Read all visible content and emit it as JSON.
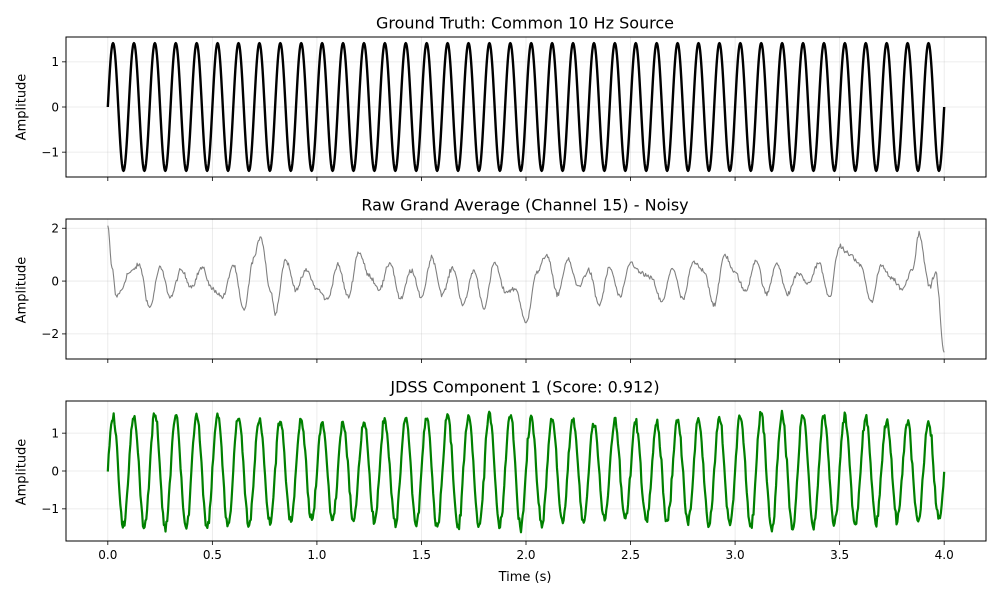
{
  "chart_data": [
    {
      "type": "line",
      "title": "Ground Truth: Common 10 Hz Source",
      "xlabel": "",
      "ylabel": "Amplitude",
      "xlim": [
        -0.2,
        4.2
      ],
      "ylim": [
        -1.55,
        1.55
      ],
      "x_ticks": [
        0.0,
        0.5,
        1.0,
        1.5,
        2.0,
        2.5,
        3.0,
        3.5,
        4.0
      ],
      "x_tick_labels": [],
      "y_ticks": [
        -1,
        0,
        1
      ],
      "y_tick_labels": [
        "−1",
        "0",
        "1"
      ],
      "grid": true,
      "color": "#000000",
      "series": [
        {
          "signal": "sine",
          "frequency_hz": 10,
          "amplitude": 1.414,
          "t_start": 0.0,
          "t_end": 4.0
        }
      ]
    },
    {
      "type": "line",
      "title": "Raw Grand Average (Channel 15) - Noisy",
      "xlabel": "",
      "ylabel": "Amplitude",
      "xlim": [
        -0.2,
        4.2
      ],
      "ylim": [
        -2.95,
        2.35
      ],
      "x_ticks": [
        0.0,
        0.5,
        1.0,
        1.5,
        2.0,
        2.5,
        3.0,
        3.5,
        4.0
      ],
      "x_tick_labels": [],
      "y_ticks": [
        -2,
        0,
        2
      ],
      "y_tick_labels": [
        "−2",
        "0",
        "2"
      ],
      "grid": true,
      "color": "#808080",
      "series": [
        {
          "signal": "noisy",
          "t_start": 0.0,
          "t_end": 4.0,
          "x": [
            0.0,
            0.02,
            0.04,
            0.06,
            0.1,
            0.15,
            0.2,
            0.25,
            0.3,
            0.35,
            0.4,
            0.45,
            0.5,
            0.55,
            0.6,
            0.65,
            0.7,
            0.73,
            0.78,
            0.8,
            0.85,
            0.9,
            0.95,
            1.0,
            1.05,
            1.1,
            1.15,
            1.2,
            1.25,
            1.3,
            1.35,
            1.4,
            1.45,
            1.5,
            1.55,
            1.6,
            1.65,
            1.7,
            1.75,
            1.8,
            1.85,
            1.9,
            1.95,
            2.0,
            2.05,
            2.1,
            2.15,
            2.2,
            2.25,
            2.3,
            2.35,
            2.4,
            2.45,
            2.5,
            2.55,
            2.6,
            2.65,
            2.7,
            2.75,
            2.8,
            2.85,
            2.9,
            2.95,
            3.0,
            3.05,
            3.1,
            3.15,
            3.2,
            3.25,
            3.3,
            3.35,
            3.4,
            3.45,
            3.5,
            3.55,
            3.6,
            3.65,
            3.7,
            3.75,
            3.8,
            3.85,
            3.88,
            3.93,
            3.96,
            4.0
          ],
          "y": [
            2.1,
            0.5,
            -0.6,
            -0.4,
            0.3,
            0.6,
            -1.0,
            0.5,
            -0.6,
            0.4,
            -0.2,
            0.5,
            -0.3,
            -0.6,
            0.6,
            -1.1,
            0.9,
            1.7,
            -0.4,
            -1.2,
            0.8,
            -0.3,
            0.4,
            -0.3,
            -0.7,
            0.6,
            -0.6,
            1.1,
            0.2,
            -0.3,
            0.7,
            -0.7,
            0.4,
            -0.6,
            0.9,
            -0.5,
            0.5,
            -0.9,
            0.4,
            -1.0,
            0.7,
            -0.4,
            -0.3,
            -1.6,
            0.3,
            1.0,
            -0.5,
            0.8,
            -0.2,
            0.4,
            -0.9,
            0.5,
            -0.6,
            0.7,
            0.3,
            0.1,
            -0.8,
            0.5,
            -0.7,
            0.7,
            0.4,
            -0.9,
            1.0,
            0.3,
            -0.4,
            0.8,
            -0.5,
            0.7,
            -0.5,
            0.3,
            -0.1,
            0.7,
            -0.6,
            1.3,
            1.0,
            0.6,
            -0.8,
            0.6,
            0.1,
            -0.3,
            0.5,
            1.8,
            -0.2,
            0.3,
            -2.7
          ]
        }
      ]
    },
    {
      "type": "line",
      "title": "JDSS Component 1 (Score: 0.912)",
      "xlabel": "Time (s)",
      "ylabel": "Amplitude",
      "xlim": [
        -0.2,
        4.2
      ],
      "ylim": [
        -1.85,
        1.85
      ],
      "x_ticks": [
        0.0,
        0.5,
        1.0,
        1.5,
        2.0,
        2.5,
        3.0,
        3.5,
        4.0
      ],
      "x_tick_labels": [
        "0.0",
        "0.5",
        "1.0",
        "1.5",
        "2.0",
        "2.5",
        "3.0",
        "3.5",
        "4.0"
      ],
      "y_ticks": [
        -1,
        0,
        1
      ],
      "y_tick_labels": [
        "−1",
        "0",
        "1"
      ],
      "grid": true,
      "color": "#008000",
      "series": [
        {
          "signal": "noisy-sine",
          "frequency_hz": 10,
          "amplitude": 1.4,
          "t_start": 0.0,
          "t_end": 4.0
        }
      ]
    }
  ]
}
